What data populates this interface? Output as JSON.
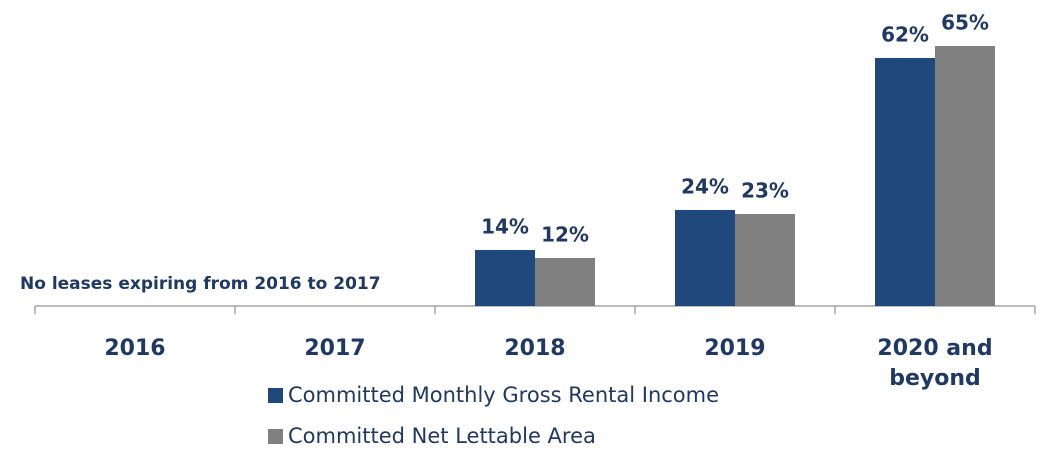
{
  "chart_data": {
    "type": "bar",
    "annotation": "No leases expiring from 2016 to 2017",
    "categories": [
      "2016",
      "2017",
      "2018",
      "2019",
      "2020 and beyond"
    ],
    "series": [
      {
        "name": "Committed Monthly Gross Rental Income",
        "color": "#1f497d",
        "values": [
          null,
          null,
          14,
          24,
          62
        ],
        "value_labels": [
          null,
          null,
          "14%",
          "24%",
          "62%"
        ]
      },
      {
        "name": "Committed Net Lettable Area",
        "color": "#808080",
        "values": [
          null,
          null,
          12,
          23,
          65
        ],
        "value_labels": [
          null,
          null,
          "12%",
          "23%",
          "65%"
        ]
      }
    ]
  }
}
